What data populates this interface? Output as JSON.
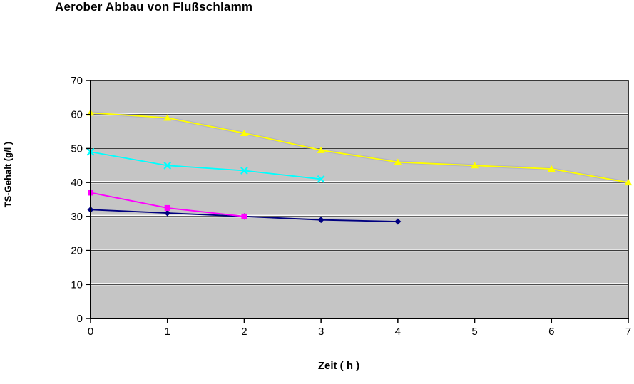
{
  "page": {
    "background": "#ffffff"
  },
  "chart_data": {
    "type": "line",
    "title": "Aerober Abbau von Flußschlamm",
    "xlabel": "Zeit ( h )",
    "ylabel": "TS-Gehalt (g/l )",
    "xlim": [
      0,
      7
    ],
    "ylim": [
      0,
      70
    ],
    "x_ticks": [
      0,
      1,
      2,
      3,
      4,
      5,
      6,
      7
    ],
    "y_ticks": [
      0,
      10,
      20,
      30,
      40,
      50,
      60,
      70
    ],
    "grid": "horizontal-only",
    "legend": "none",
    "plot_background": "#c5c5c5",
    "gridline_color": "#3c3c3c",
    "axis_color": "#000000",
    "series": [
      {
        "name": "navy-diamond-series",
        "marker": "diamond",
        "color": "#000080",
        "x": [
          0,
          1,
          2,
          3,
          4
        ],
        "values": [
          32,
          31,
          30,
          29,
          28.5
        ]
      },
      {
        "name": "magenta-square-series",
        "marker": "square",
        "color": "#ff00ff",
        "x": [
          0,
          1,
          2
        ],
        "values": [
          37,
          32.5,
          30
        ]
      },
      {
        "name": "yellow-triangle-series",
        "marker": "triangle",
        "color": "#ffff00",
        "halo": "#9c9cce",
        "x": [
          0,
          1,
          2,
          3,
          4,
          5,
          6,
          7
        ],
        "values": [
          60.5,
          59,
          54.5,
          49.5,
          46,
          45,
          44,
          40
        ]
      },
      {
        "name": "cyan-x-series",
        "marker": "x",
        "color": "#00ffff",
        "halo": "#f2b8b8",
        "x": [
          0,
          1,
          2,
          3
        ],
        "values": [
          49,
          45,
          43.5,
          41
        ]
      }
    ]
  }
}
